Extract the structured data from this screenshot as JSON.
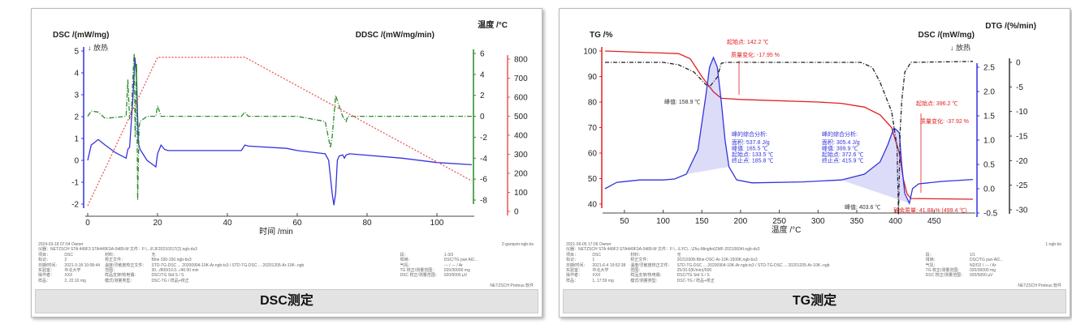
{
  "captions": {
    "left": "DSC测定",
    "right": "TG测定"
  },
  "chart_data": [
    {
      "type": "line",
      "title": "DSC测定",
      "xlabel": "时间 /min",
      "xlim": [
        0,
        110
      ],
      "xticks": [
        "0",
        "20",
        "40",
        "60",
        "80",
        "100"
      ],
      "axes": {
        "left": {
          "label": "DSC /(mW/mg)",
          "ticks": [
            "5",
            "4",
            "3",
            "2",
            "1",
            "0",
            "-1",
            "-2"
          ]
        },
        "right1": {
          "label": "DDSC /(mW/mg/min)",
          "ticks": [
            "6",
            "4",
            "2",
            "0",
            "-2",
            "-4",
            "-6",
            "-8"
          ]
        },
        "right2": {
          "label": "温度 /°C",
          "ticks": [
            "800",
            "700",
            "600",
            "500",
            "400",
            "300",
            "200",
            "100",
            "0"
          ]
        }
      },
      "exo_label": "↓ 放热",
      "series": [
        {
          "name": "DSC",
          "axis": "left",
          "color": "#3333dd",
          "points": [
            [
              0,
              0
            ],
            [
              1,
              0.7
            ],
            [
              3,
              0.95
            ],
            [
              5,
              0.7
            ],
            [
              8,
              0.35
            ],
            [
              11,
              0.1
            ],
            [
              11.5,
              0.5
            ],
            [
              12,
              0.6
            ],
            [
              13,
              3
            ],
            [
              13.5,
              4.7
            ],
            [
              14,
              3.8
            ],
            [
              14.5,
              0.8
            ],
            [
              15,
              0.5
            ],
            [
              17,
              0
            ],
            [
              19.5,
              -0.3
            ],
            [
              20,
              0.3
            ],
            [
              21,
              0.7
            ],
            [
              22,
              0.5
            ],
            [
              23,
              0.45
            ],
            [
              44,
              0.45
            ],
            [
              45,
              0.7
            ],
            [
              46,
              0.65
            ],
            [
              57,
              0.55
            ],
            [
              60,
              0.45
            ],
            [
              68,
              0.3
            ],
            [
              69,
              0
            ],
            [
              70,
              -1.5
            ],
            [
              70.5,
              -2.05
            ],
            [
              71,
              -1.5
            ],
            [
              71.5,
              0
            ],
            [
              72,
              0.2
            ],
            [
              73,
              0.25
            ],
            [
              73.5,
              0.1
            ],
            [
              74,
              0.25
            ],
            [
              75,
              0.3
            ],
            [
              90,
              0.1
            ],
            [
              100,
              -0.1
            ],
            [
              110,
              -0.2
            ]
          ]
        },
        {
          "name": "DDSC",
          "axis": "right1",
          "color": "#2a8a2a",
          "points": [
            [
              0,
              0
            ],
            [
              1,
              0.5
            ],
            [
              3,
              0.4
            ],
            [
              5,
              -0.2
            ],
            [
              11,
              0
            ],
            [
              11.5,
              3.5
            ],
            [
              12,
              -0.3
            ],
            [
              12.5,
              0.5
            ],
            [
              13,
              4
            ],
            [
              13.3,
              6
            ],
            [
              13.6,
              -2
            ],
            [
              14,
              5
            ],
            [
              14.3,
              -8
            ],
            [
              14.7,
              -1
            ],
            [
              15,
              -0.5
            ],
            [
              17,
              0
            ],
            [
              19.5,
              0
            ],
            [
              20,
              1
            ],
            [
              21,
              0
            ],
            [
              44,
              0
            ],
            [
              45,
              0.4
            ],
            [
              46,
              0
            ],
            [
              60,
              0
            ],
            [
              68,
              -0.5
            ],
            [
              69.5,
              -3
            ],
            [
              70,
              -2
            ],
            [
              71,
              2
            ],
            [
              71.5,
              1.5
            ],
            [
              73,
              0
            ],
            [
              74,
              -0.5
            ],
            [
              74.5,
              0
            ],
            [
              110,
              0
            ]
          ]
        },
        {
          "name": "温度",
          "axis": "right2",
          "color": "#ee5555",
          "points": [
            [
              0,
              30
            ],
            [
              20,
              810
            ],
            [
              45,
              810
            ],
            [
              110,
              160
            ]
          ]
        }
      ],
      "footer": {
        "left": "2024-03-18 07:04  Owner",
        "right": "2-ganqsm-ngb-bs",
        "instrument": "仪器：NETZSCH STA 449F3 STA449F3A-0489-M  文件：F:\\...\\FJF20210317(2).ngb-ds3",
        "rows": [
          [
            "项目：",
            "DSC",
            "材料：",
            "无",
            "段：",
            "1-3/3"
          ],
          [
            "标识：",
            "2",
            "校正文件：",
            "Blne 030-150.ngb-bs3",
            "坩埚：",
            "DSC/TG pan Al2..."
          ],
          [
            "日期/时间：",
            "2021-3-18 10:08:44",
            "温度/灵敏度校正文件：",
            "STD-TG-DSC ... 20200904-10K-Ar.ngb-ts3 / STD-TG-DSC ... 20201205-Ar-10K-.ngb",
            "气氛：",
            "--- / --- / Ar"
          ],
          [
            "实验室：",
            "中北大学",
            "范围：",
            "30.../800/10.0.../40.00 min",
            "TG 校正/测量范围：",
            "020/30000 mg"
          ],
          [
            "操作者：",
            "XXX",
            "样品支架/热电偶：",
            "DSC/TG Std S / S",
            "DSC 校正/测量范围：",
            "020/5000 µV"
          ],
          [
            "样品：",
            "2, 22.10 mg",
            "模式/测量类型：",
            "DSC-TG / 样品+校正",
            "",
            ""
          ]
        ],
        "brand": "NETZSCH Proteus 软件"
      }
    },
    {
      "type": "line",
      "title": "TG测定",
      "xlabel": "温度 /°C",
      "xlim": [
        25,
        500
      ],
      "xticks": [
        "50",
        "100",
        "150",
        "200",
        "250",
        "300",
        "350",
        "400",
        "450"
      ],
      "axes": {
        "left": {
          "label": "TG /%",
          "ticks": [
            "100",
            "90",
            "80",
            "70",
            "60",
            "50",
            "40"
          ]
        },
        "right1": {
          "label": "DSC /(mW/mg)",
          "ticks": [
            "2.5",
            "2.0",
            "1.5",
            "1.0",
            "0.5",
            "0.0",
            "-0.5"
          ]
        },
        "right2": {
          "label": "DTG /(%/min)",
          "ticks": [
            "0",
            "-5",
            "-10",
            "-15",
            "-20",
            "-25",
            "-30"
          ]
        }
      },
      "exo_label": "↓ 放热",
      "series": [
        {
          "name": "TG",
          "axis": "left",
          "color": "#e02020",
          "points": [
            [
              25,
              100
            ],
            [
              100,
              99.2
            ],
            [
              120,
              99
            ],
            [
              135,
              97
            ],
            [
              150,
              90
            ],
            [
              165,
              84
            ],
            [
              175,
              81.5
            ],
            [
              200,
              81
            ],
            [
              300,
              80
            ],
            [
              330,
              79.5
            ],
            [
              360,
              78
            ],
            [
              380,
              75
            ],
            [
              395,
              70
            ],
            [
              405,
              60
            ],
            [
              410,
              50
            ],
            [
              415,
              44
            ],
            [
              420,
              42.2
            ],
            [
              500,
              41.9
            ]
          ]
        },
        {
          "name": "DSC",
          "axis": "right1",
          "color": "#3333dd",
          "points": [
            [
              25,
              0
            ],
            [
              40,
              0.13
            ],
            [
              70,
              0.18
            ],
            [
              100,
              0.18
            ],
            [
              115,
              0.2
            ],
            [
              130,
              0.3
            ],
            [
              145,
              0.8
            ],
            [
              155,
              1.9
            ],
            [
              160,
              2.5
            ],
            [
              165,
              2.7
            ],
            [
              170,
              2.5
            ],
            [
              175,
              1.8
            ],
            [
              180,
              1
            ],
            [
              185,
              0.45
            ],
            [
              195,
              0.18
            ],
            [
              215,
              0.12
            ],
            [
              280,
              0.14
            ],
            [
              330,
              0.18
            ],
            [
              360,
              0.3
            ],
            [
              380,
              0.55
            ],
            [
              390,
              0.9
            ],
            [
              398,
              1.25
            ],
            [
              402,
              1.2
            ],
            [
              405,
              1.15
            ],
            [
              408,
              0.5
            ],
            [
              412,
              -0.1
            ],
            [
              418,
              -0.3
            ],
            [
              422,
              0
            ],
            [
              430,
              0.1
            ],
            [
              460,
              0.15
            ],
            [
              500,
              0.19
            ]
          ]
        },
        {
          "name": "DTG",
          "axis": "right2",
          "color": "#222222",
          "points": [
            [
              25,
              0
            ],
            [
              100,
              0
            ],
            [
              120,
              -0.5
            ],
            [
              140,
              -2
            ],
            [
              155,
              -4.5
            ],
            [
              160,
              -5
            ],
            [
              170,
              -3
            ],
            [
              175,
              -0.2
            ],
            [
              180,
              0
            ],
            [
              355,
              0
            ],
            [
              370,
              -1
            ],
            [
              380,
              -4
            ],
            [
              395,
              -10
            ],
            [
              402,
              -17
            ],
            [
              404,
              -31
            ],
            [
              406,
              -14
            ],
            [
              408,
              -8
            ],
            [
              412,
              -2
            ],
            [
              420,
              0
            ],
            [
              500,
              0.2
            ]
          ]
        }
      ],
      "annotations": {
        "onset1": "起始点: 142.2 ℃",
        "mass1": "质量变化: -17.95 %",
        "peak_dtg1": "峰值: 158.9 ℃",
        "onset2": "起始点: 396.2 ℃",
        "mass2": "质量变化: -37.92 %",
        "peak_dtg2": "峰值: 403.6 ℃",
        "residual": "残余质量: 41.88 % (499.4 ℃)",
        "peak1": {
          "title": "峰的综合分析:",
          "lines": [
            "面积:  537.8 J/g",
            "峰值:  165.5 ℃",
            "起始点: 133.5 ℃",
            "终止点: 185.8 ℃"
          ]
        },
        "peak2": {
          "title": "峰的综合分析:",
          "lines": [
            "面积:  305.4 J/g",
            "峰值:  399.9 ℃",
            "起始点: 372.6 ℃",
            "终止点: 415.9 ℃"
          ]
        }
      },
      "footer": {
        "left": "2021-06-05 17:06  Owner",
        "right": "1-ngb-bs",
        "instrument": "仪器：NETZSCH STA 449F3 STA449F3A-0489-M  文件：F:\\...\\LYC\\...\\Zhu-Mingfei\\ZMF-20210604I.ngb-ds3",
        "rows": [
          [
            "项目：",
            "DSC",
            "材料：",
            "无",
            "段：",
            "1/1"
          ],
          [
            "标识：",
            "1",
            "校正文件：",
            "20210308-Blne-DSC-Ar-10K-1500K.ngb-bs3",
            "坩埚：",
            "DSC/TG pan Al2..."
          ],
          [
            "日期/时间：",
            "2021-6-4 19:52:38",
            "温度/灵敏度校正文件：",
            "STD-TG-DSC ... 20200904-10K-Ar.ngb-ts3 / STD-TG-DSC ... 20201205-Ar-10K-.ngb",
            "气氛：",
            "N2/O2 / --- / Ar"
          ],
          [
            "实验室：",
            "中北大学",
            "范围：",
            "25/10.0(K/min)/500",
            "TG 校正/测量范围：",
            "020/30000 mg"
          ],
          [
            "操作者：",
            "XXX",
            "样品支架/热电偶：",
            "DSC/TG Std S / S",
            "DSC 校正/测量范围：",
            "020/5000 µV"
          ],
          [
            "样品：",
            "1, 17.59 mg",
            "模式/测量类型：",
            "DSC-TG / 样品+校正",
            "",
            ""
          ]
        ],
        "brand": "NETZSCH Proteus 软件"
      }
    }
  ]
}
